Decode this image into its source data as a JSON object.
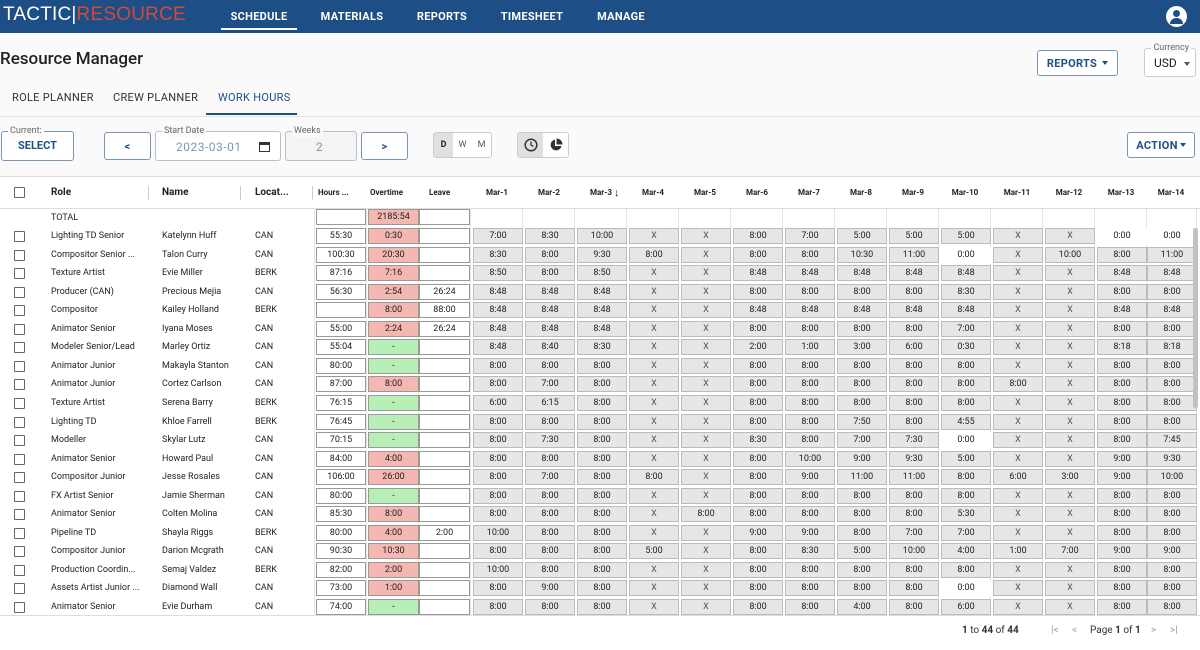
{
  "app": {
    "logo_left": "TACTIC",
    "logo_sep": "|",
    "logo_right": "RESOURCE",
    "nav": [
      {
        "label": "SCHEDULE"
      },
      {
        "label": "MATERIALS"
      },
      {
        "label": "REPORTS"
      },
      {
        "label": "TIMESHEET"
      },
      {
        "label": "MANAGE"
      }
    ]
  },
  "page": {
    "title": "Resource Manager",
    "reports_label": "REPORTS",
    "currency_legend": "Currency",
    "currency_value": "USD"
  },
  "tabs": [
    {
      "label": "ROLE PLANNER"
    },
    {
      "label": "CREW PLANNER"
    },
    {
      "label": "WORK HOURS"
    }
  ],
  "toolbar": {
    "current_legend": "Current:",
    "select_label": "SELECT",
    "prev_label": "<",
    "next_label": ">",
    "start_legend": "Start Date",
    "start_value": "2023-03-01",
    "weeks_legend": "Weeks",
    "weeks_value": "2",
    "dwm": [
      "D",
      "W",
      "M"
    ],
    "action_label": "ACTION"
  },
  "table": {
    "headers": {
      "role": "Role",
      "name": "Name",
      "location": "Locat...",
      "hours": "Hours ...",
      "overtime": "Overtime",
      "leave": "Leave"
    },
    "days": [
      "Mar-1",
      "Mar-2",
      "Mar-3",
      "Mar-4",
      "Mar-5",
      "Mar-6",
      "Mar-7",
      "Mar-8",
      "Mar-9",
      "Mar-10",
      "Mar-11",
      "Mar-12",
      "Mar-13",
      "Mar-14"
    ],
    "sort_icon": "arrow-down-icon",
    "total": {
      "label": "TOTAL",
      "hours": "",
      "overtime": "2185:54",
      "leave": ""
    },
    "rows": [
      {
        "role": "Lighting TD Senior",
        "name": "Katelynn Huff",
        "loc": "CAN",
        "hours": "55:30",
        "ot": "0:30",
        "ot_state": "red",
        "leave": "",
        "days": [
          "7:00",
          "8:30",
          "10:00",
          "X",
          "X",
          "8:00",
          "7:00",
          "5:00",
          "5:00",
          "5:00",
          "X",
          "X",
          "0:00",
          "0:00"
        ]
      },
      {
        "role": "Compositor Senior ...",
        "name": "Talon Curry",
        "loc": "CAN",
        "hours": "100:30",
        "ot": "20:30",
        "ot_state": "red",
        "leave": "",
        "days": [
          "8:30",
          "8:00",
          "9:30",
          "8:00",
          "X",
          "8:00",
          "8:00",
          "10:30",
          "11:00",
          "0:00",
          "X",
          "10:00",
          "8:00",
          "11:00"
        ]
      },
      {
        "role": "Texture Artist",
        "name": "Evie Miller",
        "loc": "BERK",
        "hours": "87:16",
        "ot": "7:16",
        "ot_state": "red",
        "leave": "",
        "days": [
          "8:50",
          "8:00",
          "8:50",
          "X",
          "X",
          "8:48",
          "8:48",
          "8:48",
          "8:48",
          "8:48",
          "X",
          "X",
          "8:48",
          "8:48"
        ]
      },
      {
        "role": "Producer (CAN)",
        "name": "Precious Mejia",
        "loc": "CAN",
        "hours": "56:30",
        "ot": "2:54",
        "ot_state": "red",
        "leave": "26:24",
        "days": [
          "8:48",
          "8:48",
          "8:48",
          "X",
          "X",
          "8:00",
          "8:00",
          "8:00",
          "8:00",
          "8:30",
          "X",
          "X",
          "8:00",
          "8:00"
        ]
      },
      {
        "role": "Compositor",
        "name": "Kailey Holland",
        "loc": "BERK",
        "hours": "",
        "ot": "8:00",
        "ot_state": "red",
        "leave": "88:00",
        "days": [
          "8:48",
          "8:48",
          "8:48",
          "X",
          "X",
          "8:48",
          "8:48",
          "8:48",
          "8:48",
          "8:48",
          "X",
          "X",
          "8:48",
          "8:48"
        ]
      },
      {
        "role": "Animator Senior",
        "name": "Iyana Moses",
        "loc": "CAN",
        "hours": "55:00",
        "ot": "2:24",
        "ot_state": "red",
        "leave": "26:24",
        "days": [
          "8:48",
          "8:48",
          "8:48",
          "X",
          "X",
          "8:00",
          "8:00",
          "8:00",
          "8:00",
          "7:00",
          "X",
          "X",
          "8:00",
          "8:00"
        ]
      },
      {
        "role": "Modeler Senior/Lead",
        "name": "Marley Ortiz",
        "loc": "CAN",
        "hours": "55:04",
        "ot": "-",
        "ot_state": "green",
        "leave": "",
        "days": [
          "8:48",
          "8:40",
          "8:30",
          "X",
          "X",
          "2:00",
          "1:00",
          "3:00",
          "6:00",
          "0:30",
          "X",
          "X",
          "8:18",
          "8:18"
        ]
      },
      {
        "role": "Animator Junior",
        "name": "Makayla Stanton",
        "loc": "CAN",
        "hours": "80:00",
        "ot": "-",
        "ot_state": "green",
        "leave": "",
        "days": [
          "8:00",
          "8:00",
          "8:00",
          "X",
          "X",
          "8:00",
          "8:00",
          "8:00",
          "8:00",
          "8:00",
          "X",
          "X",
          "8:00",
          "8:00"
        ]
      },
      {
        "role": "Animator Junior",
        "name": "Cortez Carlson",
        "loc": "CAN",
        "hours": "87:00",
        "ot": "8:00",
        "ot_state": "red",
        "leave": "",
        "days": [
          "8:00",
          "7:00",
          "8:00",
          "X",
          "X",
          "8:00",
          "8:00",
          "8:00",
          "8:00",
          "8:00",
          "8:00",
          "X",
          "8:00",
          "8:00"
        ]
      },
      {
        "role": "Texture Artist",
        "name": "Serena Barry",
        "loc": "BERK",
        "hours": "76:15",
        "ot": "-",
        "ot_state": "green",
        "leave": "",
        "days": [
          "6:00",
          "6:15",
          "8:00",
          "X",
          "X",
          "8:00",
          "8:00",
          "8:00",
          "8:00",
          "8:00",
          "X",
          "X",
          "8:00",
          "8:00"
        ]
      },
      {
        "role": "Lighting TD",
        "name": "Khloe Farrell",
        "loc": "BERK",
        "hours": "76:45",
        "ot": "-",
        "ot_state": "green",
        "leave": "",
        "days": [
          "8:00",
          "8:00",
          "8:00",
          "X",
          "X",
          "8:00",
          "8:00",
          "7:50",
          "8:00",
          "4:55",
          "X",
          "X",
          "8:00",
          "8:00"
        ]
      },
      {
        "role": "Modeller",
        "name": "Skylar Lutz",
        "loc": "CAN",
        "hours": "70:15",
        "ot": "-",
        "ot_state": "green",
        "leave": "",
        "days": [
          "8:00",
          "7:30",
          "8:00",
          "X",
          "X",
          "8:30",
          "8:00",
          "7:00",
          "7:30",
          "0:00",
          "X",
          "X",
          "8:00",
          "7:45"
        ]
      },
      {
        "role": "Animator Senior",
        "name": "Howard Paul",
        "loc": "CAN",
        "hours": "84:00",
        "ot": "4:00",
        "ot_state": "red",
        "leave": "",
        "days": [
          "8:00",
          "8:00",
          "8:00",
          "X",
          "X",
          "8:00",
          "10:00",
          "9:00",
          "9:30",
          "5:00",
          "X",
          "X",
          "9:00",
          "9:30"
        ]
      },
      {
        "role": "Compositor Junior",
        "name": "Jesse Rosales",
        "loc": "CAN",
        "hours": "106:00",
        "ot": "26:00",
        "ot_state": "red",
        "leave": "",
        "days": [
          "8:00",
          "7:00",
          "8:00",
          "8:00",
          "X",
          "8:00",
          "9:00",
          "11:00",
          "11:00",
          "8:00",
          "6:00",
          "3:00",
          "9:00",
          "10:00"
        ]
      },
      {
        "role": "FX Artist Senior",
        "name": "Jamie Sherman",
        "loc": "CAN",
        "hours": "80:00",
        "ot": "-",
        "ot_state": "green",
        "leave": "",
        "days": [
          "8:00",
          "8:00",
          "8:00",
          "X",
          "X",
          "8:00",
          "8:00",
          "8:00",
          "8:00",
          "8:00",
          "X",
          "X",
          "8:00",
          "8:00"
        ]
      },
      {
        "role": "Animator Senior",
        "name": "Colten Molina",
        "loc": "CAN",
        "hours": "85:30",
        "ot": "8:00",
        "ot_state": "red",
        "leave": "",
        "days": [
          "8:00",
          "8:00",
          "8:00",
          "X",
          "8:00",
          "8:00",
          "8:00",
          "8:00",
          "8:00",
          "5:30",
          "X",
          "X",
          "8:00",
          "8:00"
        ]
      },
      {
        "role": "Pipeline TD",
        "name": "Shayla Riggs",
        "loc": "BERK",
        "hours": "80:00",
        "ot": "4:00",
        "ot_state": "red",
        "leave": "2:00",
        "days": [
          "10:00",
          "8:00",
          "8:00",
          "X",
          "X",
          "9:00",
          "9:00",
          "8:00",
          "7:00",
          "7:00",
          "X",
          "X",
          "8:00",
          "8:00"
        ]
      },
      {
        "role": "Compositor Junior",
        "name": "Darion Mcgrath",
        "loc": "CAN",
        "hours": "90:30",
        "ot": "10:30",
        "ot_state": "red",
        "leave": "",
        "days": [
          "8:00",
          "8:00",
          "8:00",
          "5:00",
          "X",
          "8:00",
          "8:30",
          "5:00",
          "10:00",
          "4:00",
          "1:00",
          "7:00",
          "9:00",
          "9:00"
        ]
      },
      {
        "role": "Production Coordin...",
        "name": "Semaj Valdez",
        "loc": "BERK",
        "hours": "82:00",
        "ot": "2:00",
        "ot_state": "red",
        "leave": "",
        "days": [
          "10:00",
          "8:00",
          "8:00",
          "X",
          "X",
          "8:00",
          "8:00",
          "8:00",
          "8:00",
          "8:00",
          "X",
          "X",
          "8:00",
          "8:00"
        ]
      },
      {
        "role": "Assets Artist Junior ...",
        "name": "Diamond Wall",
        "loc": "CAN",
        "hours": "73:00",
        "ot": "1:00",
        "ot_state": "red",
        "leave": "",
        "days": [
          "8:00",
          "9:00",
          "8:00",
          "X",
          "X",
          "8:00",
          "8:00",
          "8:00",
          "8:00",
          "0:00",
          "X",
          "X",
          "8:00",
          "8:00"
        ]
      },
      {
        "role": "Animator Senior",
        "name": "Evie Durham",
        "loc": "CAN",
        "hours": "74:00",
        "ot": "-",
        "ot_state": "green",
        "leave": "",
        "days": [
          "8:00",
          "8:00",
          "8:00",
          "X",
          "X",
          "8:00",
          "8:00",
          "4:00",
          "8:00",
          "6:00",
          "X",
          "X",
          "8:00",
          "8:00"
        ]
      }
    ]
  },
  "footer": {
    "range_from": "1",
    "range_to_word": "to",
    "range_to": "44",
    "of_word": "of",
    "total": "44",
    "page_word": "Page",
    "page_num": "1",
    "page_of": "of",
    "page_total": "1"
  }
}
